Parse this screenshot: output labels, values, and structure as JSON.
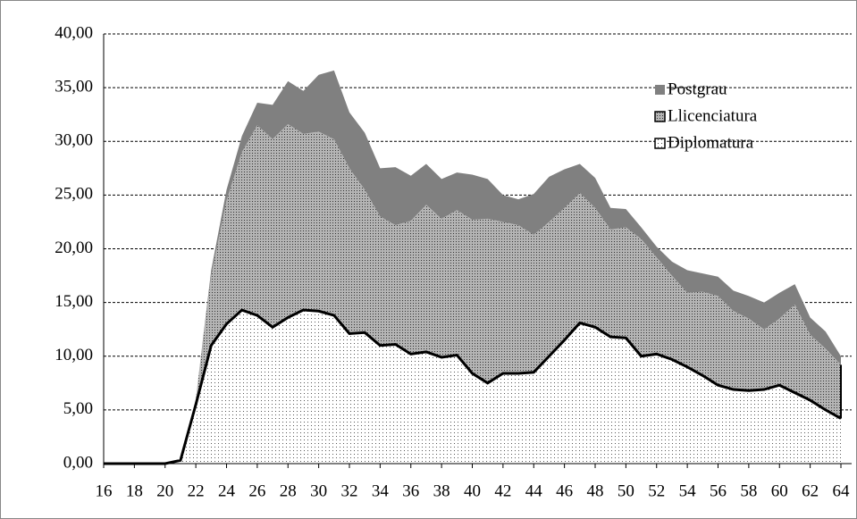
{
  "chart_data": {
    "type": "stacked-area",
    "x": [
      16,
      17,
      18,
      19,
      20,
      21,
      22,
      23,
      24,
      25,
      26,
      27,
      28,
      29,
      30,
      31,
      32,
      33,
      34,
      35,
      36,
      37,
      38,
      39,
      40,
      41,
      42,
      43,
      44,
      45,
      46,
      47,
      48,
      49,
      50,
      51,
      52,
      53,
      54,
      55,
      56,
      57,
      58,
      59,
      60,
      61,
      62,
      63,
      64
    ],
    "xlim": [
      16,
      64
    ],
    "xticks": [
      16,
      18,
      20,
      22,
      24,
      26,
      28,
      30,
      32,
      34,
      36,
      38,
      40,
      42,
      44,
      46,
      48,
      50,
      52,
      54,
      56,
      58,
      60,
      62,
      64
    ],
    "ylim": [
      0,
      40
    ],
    "yticks": [
      {
        "value": 0,
        "label": "0,00"
      },
      {
        "value": 5,
        "label": "5,00"
      },
      {
        "value": 10,
        "label": "10,00"
      },
      {
        "value": 15,
        "label": "15,00"
      },
      {
        "value": 20,
        "label": "20,00"
      },
      {
        "value": 25,
        "label": "25,00"
      },
      {
        "value": 30,
        "label": "30,00"
      },
      {
        "value": 35,
        "label": "35,00"
      },
      {
        "value": 40,
        "label": "40,00"
      }
    ],
    "grid": true,
    "legend": "upper right",
    "series": [
      {
        "name": "Diplomatura",
        "color": "#ffffff",
        "values": [
          0,
          0,
          0,
          0,
          0,
          0.3,
          5.5,
          11,
          13,
          14.3,
          13.8,
          12.7,
          13.6,
          14.3,
          14.2,
          13.8,
          12.1,
          12.2,
          11,
          11.1,
          10.2,
          10.4,
          9.9,
          10.1,
          8.4,
          7.5,
          8.4,
          8.4,
          8.5,
          10,
          11.5,
          13.1,
          12.7,
          11.8,
          11.7,
          10,
          10.2,
          9.7,
          9,
          8.2,
          7.3,
          6.9,
          6.8,
          6.9,
          7.3,
          6.6,
          5.9,
          5,
          4.2
        ]
      },
      {
        "name": "Llicenciatura",
        "color": "#b4b4b4",
        "values": [
          0,
          0,
          0,
          0,
          0,
          0,
          0.5,
          6.5,
          11.5,
          14.7,
          17.7,
          17.5,
          18,
          16.4,
          16.7,
          16.4,
          15.4,
          13.3,
          12,
          11.1,
          12.4,
          13.7,
          12.9,
          13.5,
          14.3,
          15.3,
          14.1,
          13.8,
          12.8,
          12.5,
          12.3,
          12.1,
          11.1,
          10,
          10.3,
          10.9,
          9,
          7.8,
          6.9,
          7.8,
          8.3,
          7.3,
          6.7,
          5.6,
          6.2,
          8.2,
          6.1,
          5.7,
          5
        ]
      },
      {
        "name": "Postgrau",
        "color": "#808080",
        "values": [
          0,
          0,
          0,
          0,
          0,
          0,
          0,
          0.5,
          1,
          1.5,
          2.1,
          3.2,
          4,
          4,
          5.3,
          6.4,
          5.2,
          5.3,
          4.5,
          5.4,
          4.2,
          3.8,
          3.7,
          3.5,
          4.2,
          3.7,
          2.5,
          2.4,
          3.8,
          4.2,
          3.6,
          2.7,
          2.8,
          2,
          1.7,
          1.1,
          1,
          1.3,
          2.1,
          1.7,
          1.8,
          1.9,
          2.1,
          2.5,
          2.4,
          1.9,
          1.6,
          1.6,
          0.8
        ]
      }
    ]
  }
}
